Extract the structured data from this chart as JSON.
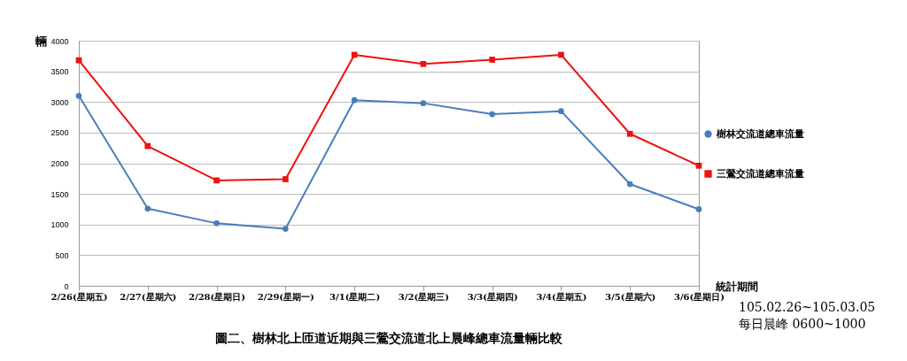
{
  "chart_data": {
    "type": "line",
    "title": "圖二、樹林北上匝道近期與三鶯交流道北上晨峰總車流量輛比較",
    "xlabel": "統計期間",
    "ylabel": "輛",
    "annotations": [
      "105.02.26~105.03.05",
      "每日晨峰 0600~1000"
    ],
    "categories": [
      "2/26(星期五)",
      "2/27(星期六)",
      "2/28(星期日)",
      "2/29(星期一)",
      "3/1(星期二)",
      "3/2(星期三)",
      "3/3(星期四)",
      "3/4(星期五)",
      "3/5(星期六)",
      "3/6(星期日)"
    ],
    "series": [
      {
        "name": "樹林交流道總車流量",
        "color": "#4a7ebb",
        "marker": "circle",
        "values": [
          3100,
          1260,
          1020,
          930,
          3030,
          2980,
          2800,
          2850,
          1660,
          1250
        ]
      },
      {
        "name": "三鶯交流道總車流量",
        "color": "#ee1111",
        "marker": "square",
        "values": [
          3680,
          2280,
          1720,
          1740,
          3770,
          3620,
          3690,
          3770,
          2480,
          1960
        ]
      }
    ],
    "ylim": [
      0,
      4000
    ],
    "yticks": [
      0,
      500,
      1000,
      1500,
      2000,
      2500,
      3000,
      3500,
      4000
    ],
    "grid": "y",
    "legend": "right"
  }
}
